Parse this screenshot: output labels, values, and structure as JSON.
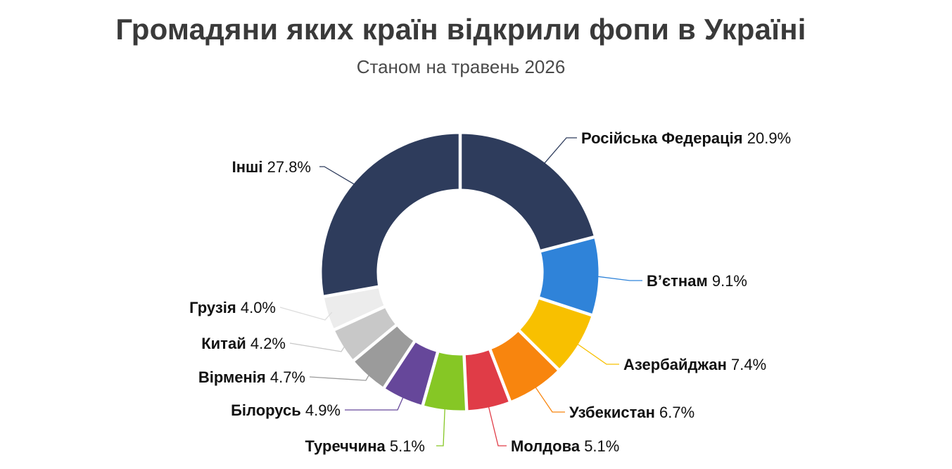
{
  "title": "Громадяни яких країн відкрили фопи в Україні",
  "subtitle": "Станом на травень 2026",
  "chart_data": {
    "type": "pie",
    "title": "Громадяни яких країн відкрили фопи в Україні",
    "subtitle": "Станом на травень 2026",
    "slices": [
      {
        "label": "Російська Федерація",
        "value": 20.9,
        "value_label": "20.9%",
        "color": "#2e3c5c"
      },
      {
        "label": "В’єтнам",
        "value": 9.1,
        "value_label": "9.1%",
        "color": "#2f83d9"
      },
      {
        "label": "Азербайджан",
        "value": 7.4,
        "value_label": "7.4%",
        "color": "#f8c000"
      },
      {
        "label": "Узбекистан",
        "value": 6.7,
        "value_label": "6.7%",
        "color": "#f8850e"
      },
      {
        "label": "Молдова",
        "value": 5.1,
        "value_label": "5.1%",
        "color": "#e03c47"
      },
      {
        "label": "Туреччина",
        "value": 5.1,
        "value_label": "5.1%",
        "color": "#86c725"
      },
      {
        "label": "Білорусь",
        "value": 4.9,
        "value_label": "4.9%",
        "color": "#66479a"
      },
      {
        "label": "Вірменія",
        "value": 4.7,
        "value_label": "4.7%",
        "color": "#9b9b9b"
      },
      {
        "label": "Китай",
        "value": 4.2,
        "value_label": "4.2%",
        "color": "#c8c8c8"
      },
      {
        "label": "Грузія",
        "value": 4.0,
        "value_label": "4.0%",
        "color": "#ececec"
      },
      {
        "label": "Інші",
        "value": 27.8,
        "value_label": "27.8%",
        "color": "#2e3c5c"
      }
    ],
    "donut": true,
    "legend": "none"
  }
}
